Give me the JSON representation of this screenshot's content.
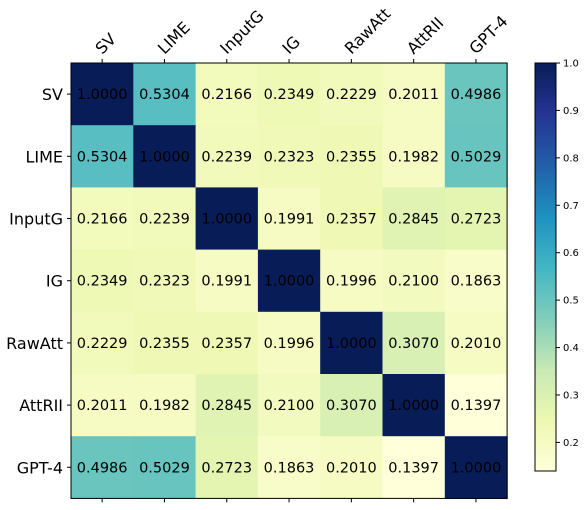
{
  "chart_data": {
    "type": "heatmap",
    "title": "",
    "xlabel": "",
    "ylabel": "",
    "row_labels": [
      "SV",
      "LIME",
      "InputG",
      "IG",
      "RawAtt",
      "AttRII",
      "GPT-4"
    ],
    "col_labels": [
      "SV",
      "LIME",
      "InputG",
      "IG",
      "RawAtt",
      "AttRII",
      "GPT-4"
    ],
    "values": [
      [
        1.0,
        0.5304,
        0.2166,
        0.2349,
        0.2229,
        0.2011,
        0.4986
      ],
      [
        0.5304,
        1.0,
        0.2239,
        0.2323,
        0.2355,
        0.1982,
        0.5029
      ],
      [
        0.2166,
        0.2239,
        1.0,
        0.1991,
        0.2357,
        0.2845,
        0.2723
      ],
      [
        0.2349,
        0.2323,
        0.1991,
        1.0,
        0.1996,
        0.21,
        0.1863
      ],
      [
        0.2229,
        0.2355,
        0.2357,
        0.1996,
        1.0,
        0.307,
        0.201
      ],
      [
        0.2011,
        0.1982,
        0.2845,
        0.21,
        0.307,
        1.0,
        0.1397
      ],
      [
        0.4986,
        0.5029,
        0.2723,
        0.1863,
        0.201,
        0.1397,
        1.0
      ]
    ],
    "cell_text": [
      [
        "1.0000",
        "0.5304",
        "0.2166",
        "0.2349",
        "0.2229",
        "0.2011",
        "0.4986"
      ],
      [
        "0.5304",
        "1.0000",
        "0.2239",
        "0.2323",
        "0.2355",
        "0.1982",
        "0.5029"
      ],
      [
        "0.2166",
        "0.2239",
        "1.0000",
        "0.1991",
        "0.2357",
        "0.2845",
        "0.2723"
      ],
      [
        "0.2349",
        "0.2323",
        "0.1991",
        "1.0000",
        "0.1996",
        "0.2100",
        "0.1863"
      ],
      [
        "0.2229",
        "0.2355",
        "0.2357",
        "0.1996",
        "1.0000",
        "0.3070",
        "0.2010"
      ],
      [
        "0.2011",
        "0.1982",
        "0.2845",
        "0.2100",
        "0.3070",
        "1.0000",
        "0.1397"
      ],
      [
        "0.4986",
        "0.5029",
        "0.2723",
        "0.1863",
        "0.2010",
        "0.1397",
        "1.0000"
      ]
    ],
    "colormap": "YlGnBu",
    "vmin": 0.1397,
    "vmax": 1.0,
    "colorbar_ticks": [
      "0.2",
      "0.3",
      "0.4",
      "0.5",
      "0.6",
      "0.7",
      "0.8",
      "0.9",
      "1.0"
    ],
    "grid": false,
    "legend": "colorbar-right",
    "colors": {
      "text_dark": "#000000"
    }
  }
}
